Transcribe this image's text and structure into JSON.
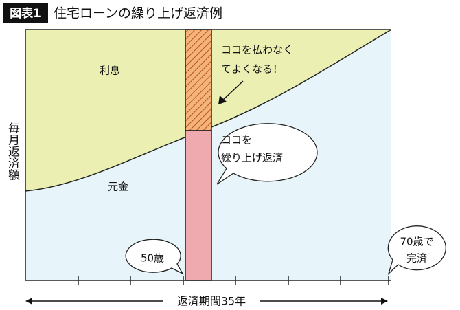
{
  "header": {
    "badge": "図表1",
    "title": "住宅ローンの繰り上げ返済例"
  },
  "regions": {
    "interest": "利息",
    "principal": "元金"
  },
  "axes": {
    "y_label": "毎月返済額",
    "x_label": "返済期間35年"
  },
  "callouts": {
    "no_need": [
      "ココを払わなく",
      "てよくなる！"
    ],
    "prepay": [
      "ココを",
      "繰り上げ返済"
    ],
    "start_age": "50歳",
    "end_age": [
      "70歳で",
      "完済"
    ]
  }
}
